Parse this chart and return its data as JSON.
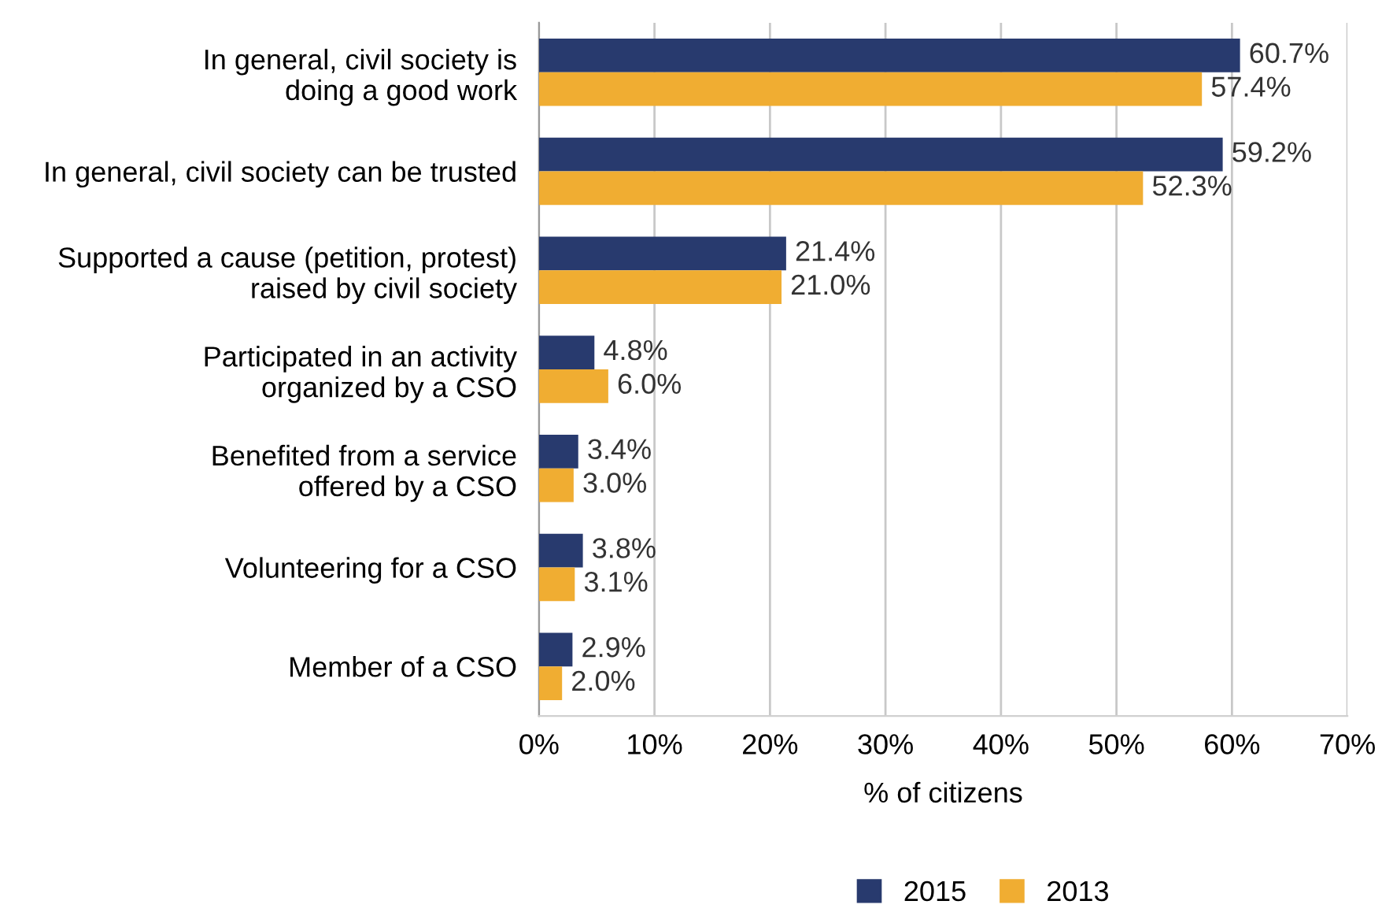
{
  "chart_data": {
    "type": "bar",
    "orientation": "horizontal",
    "xlabel": "% of citizens",
    "categories": [
      "In general, civil society is\ndoing a good work",
      "In general, civil society can be trusted",
      "Supported a cause (petition, protest)\nraised by civil society",
      "Participated in an activity\norganized by a CSO",
      "Benefited from a service\noffered by a CSO",
      "Volunteering for a CSO",
      "Member of a CSO"
    ],
    "series": [
      {
        "name": "2015",
        "color": "#283a6e",
        "values": [
          60.7,
          59.2,
          21.4,
          4.8,
          3.4,
          3.8,
          2.9
        ],
        "value_labels": [
          "60.7%",
          "59.2%",
          "21.4%",
          "4.8%",
          "3.4%",
          "3.8%",
          "2.9%"
        ]
      },
      {
        "name": "2013",
        "color": "#f0ad32",
        "values": [
          57.4,
          52.3,
          21.0,
          6.0,
          3.0,
          3.1,
          2.0
        ],
        "value_labels": [
          "57.4%",
          "52.3%",
          "21.0%",
          "6.0%",
          "3.0%",
          "3.1%",
          "2.0%"
        ]
      }
    ],
    "xlim": [
      0,
      70
    ],
    "xticks": [
      {
        "value": 0,
        "label": "0%"
      },
      {
        "value": 10,
        "label": "10%"
      },
      {
        "value": 20,
        "label": "20%"
      },
      {
        "value": 30,
        "label": "30%"
      },
      {
        "value": 40,
        "label": "40%"
      },
      {
        "value": 50,
        "label": "50%"
      },
      {
        "value": 60,
        "label": "60%"
      },
      {
        "value": 70,
        "label": "70%"
      }
    ],
    "grid": "x",
    "legend": "bottom"
  }
}
